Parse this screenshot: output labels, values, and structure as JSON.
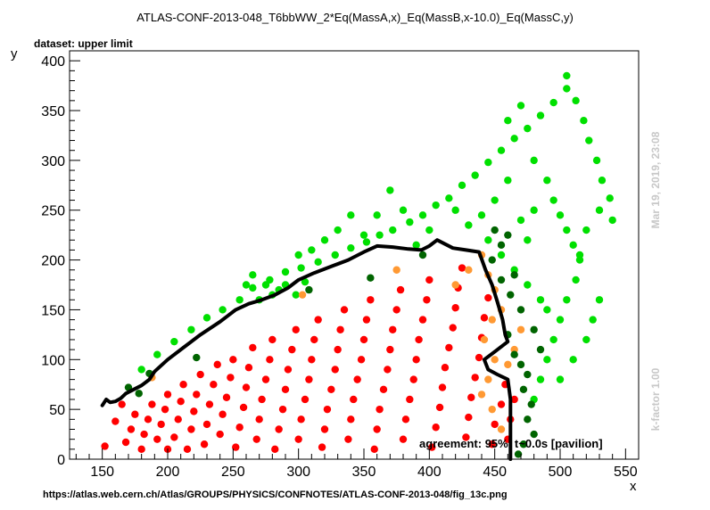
{
  "title": "ATLAS-CONF-2013-048_T6bbWW_2*Eq(MassA,x)_Eq(MassB,x-10.0)_Eq(MassC,y)",
  "subtitle": "dataset: upper limit",
  "footer_url": "https://atlas.web.cern.ch/Atlas/GROUPS/PHYSICS/CONFNOTES/ATLAS-CONF-2013-048/fig_13c.png",
  "side_date": "Mar 19, 2019, 23:08",
  "side_kfactor": "k-factor 1.00",
  "agreement_text": "agreement: 95%, t~0.0s [pavilion]",
  "colors": {
    "excluded": "#ff0000",
    "allowed": "#00e000",
    "borderline_excluded": "#ff9933",
    "borderline_allowed": "#006400",
    "contour": "#000000",
    "side_text": "#c8c8c8"
  },
  "chart_data": {
    "type": "scatter",
    "xlabel": "x",
    "ylabel": "y",
    "xlim": [
      125,
      560
    ],
    "ylim": [
      0,
      410
    ],
    "xticks": [
      150,
      200,
      250,
      300,
      350,
      400,
      450,
      500,
      550
    ],
    "yticks": [
      0,
      50,
      100,
      150,
      200,
      250,
      300,
      350,
      400
    ],
    "grid": false,
    "series": [
      {
        "color_key": "excluded",
        "points": [
          [
            152,
            13
          ],
          [
            160,
            38
          ],
          [
            165,
            55
          ],
          [
            168,
            17
          ],
          [
            172,
            30
          ],
          [
            175,
            45
          ],
          [
            180,
            10
          ],
          [
            182,
            25
          ],
          [
            185,
            40
          ],
          [
            188,
            55
          ],
          [
            192,
            20
          ],
          [
            195,
            35
          ],
          [
            198,
            50
          ],
          [
            200,
            65
          ],
          [
            200,
            10
          ],
          [
            205,
            22
          ],
          [
            208,
            40
          ],
          [
            210,
            58
          ],
          [
            212,
            75
          ],
          [
            215,
            10
          ],
          [
            218,
            30
          ],
          [
            220,
            48
          ],
          [
            222,
            65
          ],
          [
            225,
            85
          ],
          [
            228,
            15
          ],
          [
            230,
            35
          ],
          [
            232,
            55
          ],
          [
            235,
            75
          ],
          [
            238,
            95
          ],
          [
            240,
            25
          ],
          [
            242,
            45
          ],
          [
            245,
            62
          ],
          [
            248,
            82
          ],
          [
            250,
            100
          ],
          [
            252,
            12
          ],
          [
            255,
            32
          ],
          [
            258,
            52
          ],
          [
            260,
            72
          ],
          [
            262,
            92
          ],
          [
            265,
            112
          ],
          [
            268,
            20
          ],
          [
            270,
            40
          ],
          [
            272,
            60
          ],
          [
            275,
            80
          ],
          [
            278,
            100
          ],
          [
            280,
            120
          ],
          [
            282,
            10
          ],
          [
            285,
            30
          ],
          [
            288,
            50
          ],
          [
            290,
            70
          ],
          [
            292,
            90
          ],
          [
            295,
            110
          ],
          [
            298,
            130
          ],
          [
            300,
            20
          ],
          [
            302,
            40
          ],
          [
            305,
            60
          ],
          [
            308,
            80
          ],
          [
            310,
            100
          ],
          [
            312,
            120
          ],
          [
            315,
            140
          ],
          [
            318,
            12
          ],
          [
            320,
            30
          ],
          [
            322,
            50
          ],
          [
            325,
            70
          ],
          [
            328,
            90
          ],
          [
            330,
            110
          ],
          [
            332,
            130
          ],
          [
            335,
            150
          ],
          [
            338,
            20
          ],
          [
            340,
            40
          ],
          [
            342,
            60
          ],
          [
            345,
            80
          ],
          [
            348,
            100
          ],
          [
            350,
            120
          ],
          [
            352,
            140
          ],
          [
            355,
            160
          ],
          [
            358,
            10
          ],
          [
            360,
            30
          ],
          [
            362,
            50
          ],
          [
            365,
            70
          ],
          [
            368,
            90
          ],
          [
            370,
            110
          ],
          [
            372,
            130
          ],
          [
            375,
            150
          ],
          [
            378,
            170
          ],
          [
            380,
            20
          ],
          [
            382,
            40
          ],
          [
            385,
            60
          ],
          [
            388,
            80
          ],
          [
            390,
            100
          ],
          [
            392,
            120
          ],
          [
            395,
            140
          ],
          [
            398,
            160
          ],
          [
            400,
            180
          ],
          [
            402,
            12
          ],
          [
            405,
            32
          ],
          [
            408,
            52
          ],
          [
            410,
            72
          ],
          [
            412,
            92
          ],
          [
            415,
            112
          ],
          [
            418,
            132
          ],
          [
            420,
            152
          ],
          [
            422,
            172
          ],
          [
            425,
            192
          ],
          [
            428,
            22
          ],
          [
            430,
            42
          ],
          [
            432,
            62
          ],
          [
            435,
            82
          ],
          [
            438,
            102
          ],
          [
            440,
            122
          ],
          [
            442,
            142
          ],
          [
            445,
            162
          ],
          [
            448,
            15
          ],
          [
            450,
            35
          ],
          [
            455,
            55
          ],
          [
            458,
            75
          ],
          [
            460,
            20
          ],
          [
            462,
            40
          ],
          [
            465,
            60
          ]
        ]
      },
      {
        "color_key": "allowed",
        "points": [
          [
            180,
            90
          ],
          [
            192,
            105
          ],
          [
            205,
            118
          ],
          [
            218,
            130
          ],
          [
            230,
            142
          ],
          [
            242,
            150
          ],
          [
            255,
            160
          ],
          [
            265,
            172
          ],
          [
            278,
            180
          ],
          [
            290,
            188
          ],
          [
            302,
            192
          ],
          [
            315,
            198
          ],
          [
            328,
            205
          ],
          [
            340,
            212
          ],
          [
            352,
            218
          ],
          [
            362,
            225
          ],
          [
            372,
            230
          ],
          [
            385,
            238
          ],
          [
            395,
            245
          ],
          [
            405,
            255
          ],
          [
            415,
            262
          ],
          [
            425,
            275
          ],
          [
            435,
            285
          ],
          [
            445,
            298
          ],
          [
            455,
            310
          ],
          [
            465,
            322
          ],
          [
            475,
            332
          ],
          [
            485,
            345
          ],
          [
            495,
            358
          ],
          [
            505,
            372
          ],
          [
            505,
            385
          ],
          [
            512,
            360
          ],
          [
            518,
            340
          ],
          [
            522,
            320
          ],
          [
            528,
            300
          ],
          [
            532,
            280
          ],
          [
            538,
            262
          ],
          [
            540,
            240
          ],
          [
            530,
            250
          ],
          [
            520,
            230
          ],
          [
            515,
            205
          ],
          [
            512,
            180
          ],
          [
            505,
            160
          ],
          [
            500,
            140
          ],
          [
            495,
            120
          ],
          [
            490,
            100
          ],
          [
            485,
            80
          ],
          [
            480,
            60
          ],
          [
            500,
            80
          ],
          [
            510,
            100
          ],
          [
            520,
            120
          ],
          [
            525,
            140
          ],
          [
            530,
            160
          ],
          [
            460,
            340
          ],
          [
            470,
            355
          ],
          [
            480,
            300
          ],
          [
            490,
            280
          ],
          [
            495,
            260
          ],
          [
            500,
            245
          ],
          [
            505,
            230
          ],
          [
            510,
            215
          ],
          [
            515,
            200
          ],
          [
            420,
            250
          ],
          [
            430,
            235
          ],
          [
            445,
            220
          ],
          [
            455,
            205
          ],
          [
            465,
            190
          ],
          [
            475,
            175
          ],
          [
            485,
            160
          ],
          [
            490,
            150
          ],
          [
            470,
            240
          ],
          [
            475,
            220
          ],
          [
            480,
            250
          ],
          [
            460,
            280
          ],
          [
            450,
            260
          ],
          [
            440,
            245
          ],
          [
            400,
            230
          ],
          [
            390,
            215
          ],
          [
            380,
            250
          ],
          [
            370,
            270
          ],
          [
            360,
            245
          ],
          [
            350,
            225
          ],
          [
            340,
            245
          ],
          [
            330,
            230
          ],
          [
            320,
            220
          ],
          [
            310,
            210
          ],
          [
            300,
            205
          ],
          [
            290,
            175
          ],
          [
            280,
            165
          ],
          [
            270,
            160
          ],
          [
            260,
            175
          ],
          [
            265,
            185
          ],
          [
            275,
            175
          ],
          [
            285,
            170
          ],
          [
            298,
            165
          ],
          [
            305,
            178
          ]
        ]
      },
      {
        "color_key": "borderline_excluded",
        "points": [
          [
            188,
            82
          ],
          [
            303,
            165
          ],
          [
            375,
            190
          ],
          [
            420,
            175
          ],
          [
            430,
            190
          ],
          [
            440,
            205
          ],
          [
            445,
            185
          ],
          [
            450,
            170
          ],
          [
            455,
            150
          ],
          [
            448,
            140
          ],
          [
            442,
            120
          ],
          [
            450,
            100
          ],
          [
            445,
            80
          ],
          [
            440,
            65
          ],
          [
            448,
            50
          ],
          [
            455,
            30
          ],
          [
            460,
            95
          ],
          [
            465,
            110
          ],
          [
            470,
            130
          ]
        ]
      },
      {
        "color_key": "borderline_allowed",
        "points": [
          [
            170,
            72
          ],
          [
            178,
            66
          ],
          [
            186,
            86
          ],
          [
            222,
            102
          ],
          [
            308,
            170
          ],
          [
            355,
            182
          ],
          [
            395,
            205
          ],
          [
            460,
            125
          ],
          [
            465,
            105
          ],
          [
            470,
            95
          ],
          [
            475,
            85
          ],
          [
            472,
            70
          ],
          [
            478,
            55
          ],
          [
            475,
            40
          ],
          [
            480,
            25
          ],
          [
            472,
            15
          ],
          [
            468,
            5
          ],
          [
            485,
            110
          ],
          [
            480,
            130
          ],
          [
            470,
            150
          ],
          [
            462,
            165
          ],
          [
            455,
            180
          ],
          [
            448,
            200
          ],
          [
            455,
            215
          ],
          [
            460,
            225
          ],
          [
            450,
            230
          ],
          [
            465,
            185
          ]
        ]
      }
    ],
    "contour": [
      [
        150,
        54
      ],
      [
        153,
        60
      ],
      [
        156,
        57
      ],
      [
        160,
        58
      ],
      [
        164,
        61
      ],
      [
        168,
        66
      ],
      [
        174,
        70
      ],
      [
        180,
        74
      ],
      [
        186,
        80
      ],
      [
        190,
        88
      ],
      [
        200,
        100
      ],
      [
        212,
        112
      ],
      [
        225,
        125
      ],
      [
        240,
        138
      ],
      [
        252,
        150
      ],
      [
        262,
        156
      ],
      [
        272,
        160
      ],
      [
        282,
        165
      ],
      [
        292,
        172
      ],
      [
        300,
        180
      ],
      [
        312,
        187
      ],
      [
        326,
        194
      ],
      [
        338,
        200
      ],
      [
        350,
        208
      ],
      [
        360,
        214
      ],
      [
        372,
        213
      ],
      [
        384,
        211
      ],
      [
        394,
        210
      ],
      [
        400,
        214
      ],
      [
        406,
        220
      ],
      [
        412,
        216
      ],
      [
        418,
        212
      ],
      [
        428,
        210
      ],
      [
        438,
        208
      ],
      [
        443,
        190
      ],
      [
        448,
        175
      ],
      [
        452,
        158
      ],
      [
        456,
        140
      ],
      [
        458,
        125
      ],
      [
        460,
        118
      ],
      [
        450,
        108
      ],
      [
        442,
        100
      ],
      [
        445,
        90
      ],
      [
        452,
        85
      ],
      [
        460,
        80
      ],
      [
        462,
        60
      ],
      [
        462,
        30
      ],
      [
        462,
        0
      ]
    ]
  },
  "axes": {
    "ylabel_side": "y",
    "xlabel_side": "x"
  }
}
